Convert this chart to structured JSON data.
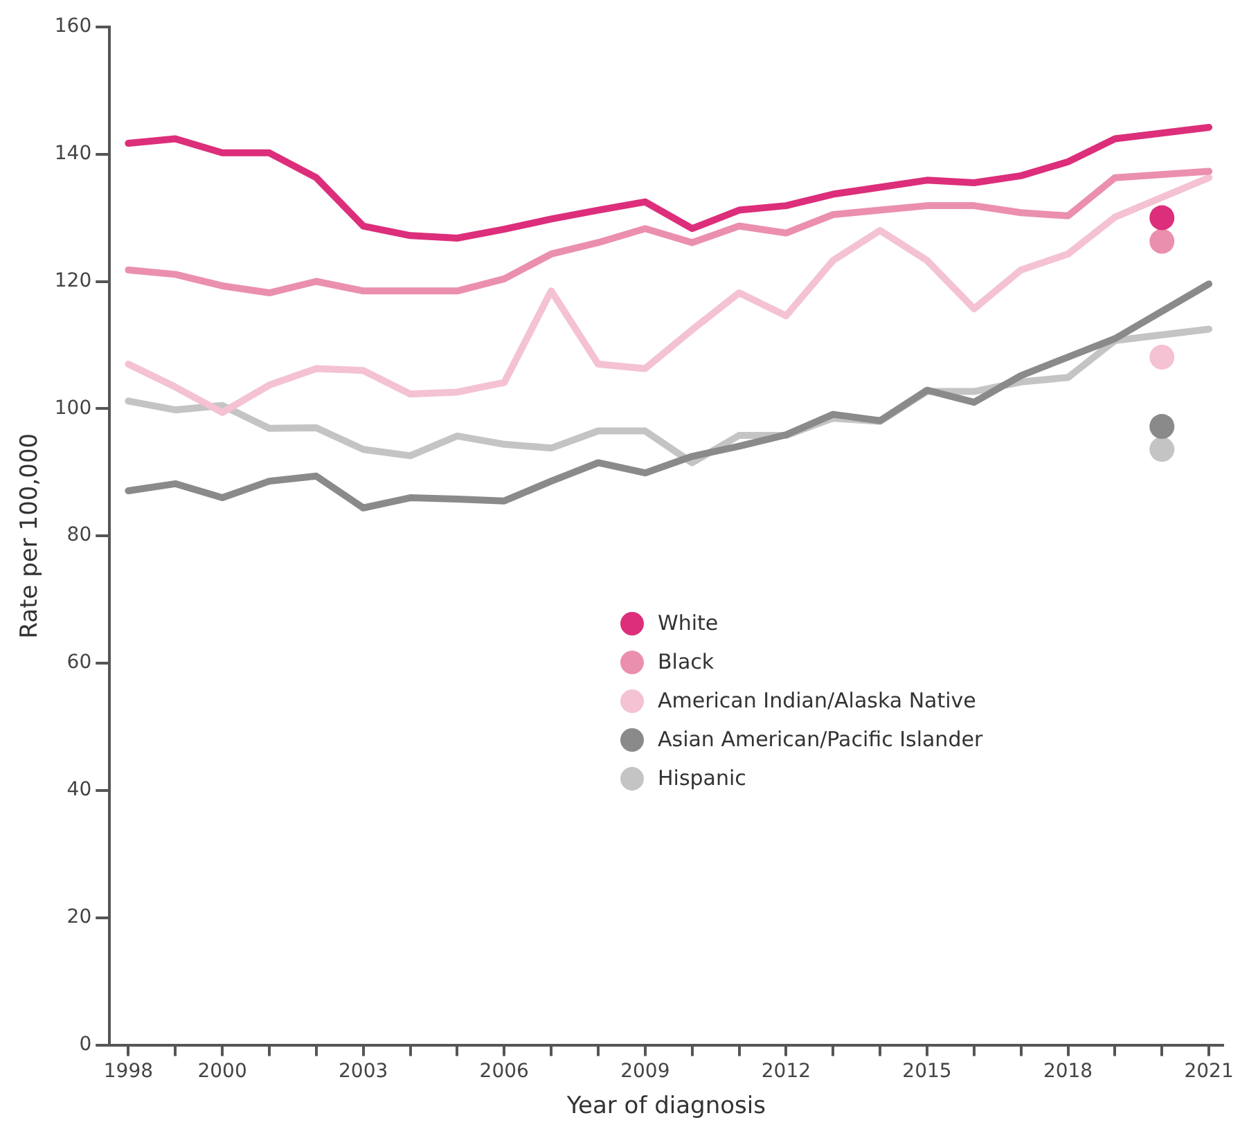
{
  "chart_data": {
    "type": "line",
    "xlabel": "Year of diagnosis",
    "ylabel": "Rate per 100,000",
    "xlim": [
      1997.6,
      2021.3
    ],
    "xticks": [
      1998,
      {
        "value": 1999,
        "label": null
      },
      2000,
      {
        "value": 2001,
        "label": null
      },
      {
        "value": 2002,
        "label": null
      },
      2003,
      {
        "value": 2004,
        "label": null
      },
      {
        "value": 2005,
        "label": null
      },
      2006,
      {
        "value": 2007,
        "label": null
      },
      {
        "value": 2008,
        "label": null
      },
      2009,
      {
        "value": 2010,
        "label": null
      },
      {
        "value": 2011,
        "label": null
      },
      2012,
      {
        "value": 2013,
        "label": null
      },
      {
        "value": 2014,
        "label": null
      },
      2015,
      {
        "value": 2016,
        "label": null
      },
      {
        "value": 2017,
        "label": null
      },
      2018,
      {
        "value": 2019,
        "label": null
      },
      {
        "value": 2020,
        "label": null
      },
      2021
    ],
    "ylim": [
      0,
      160
    ],
    "yticks": [
      0,
      20,
      40,
      60,
      80,
      100,
      120,
      140,
      160
    ],
    "grid": false,
    "legend": "center",
    "marker": "none",
    "line_style": "solid",
    "series": [
      {
        "name": "White",
        "color": "#dc2e7a",
        "x": [
          1998,
          1999,
          2000,
          2001,
          2002,
          2003,
          2004,
          2005,
          2006,
          2007,
          2008,
          2009,
          2010,
          2011,
          2012,
          2013,
          2014,
          2015,
          2016,
          2017,
          2018,
          2019,
          2021
        ],
        "values": [
          141.7,
          142.4,
          140.2,
          140.2,
          136.3,
          128.7,
          127.2,
          126.8,
          128.2,
          129.8,
          131.2,
          132.5,
          128.3,
          131.2,
          131.9,
          133.7,
          134.8,
          135.9,
          135.5,
          136.6,
          138.8,
          142.4,
          144.2
        ]
      },
      {
        "name": "Black",
        "color": "#eb8fae",
        "x": [
          1998,
          1999,
          2000,
          2001,
          2002,
          2003,
          2004,
          2005,
          2006,
          2007,
          2008,
          2009,
          2010,
          2011,
          2012,
          2013,
          2014,
          2015,
          2016,
          2017,
          2018,
          2019,
          2021
        ],
        "values": [
          121.8,
          121.1,
          119.3,
          118.2,
          120,
          118.5,
          118.5,
          118.5,
          120.4,
          124.3,
          126.1,
          128.3,
          126.1,
          128.7,
          127.6,
          130.5,
          131.2,
          131.9,
          131.9,
          130.8,
          130.3,
          136.3,
          137.3
        ]
      },
      {
        "name": "American Indian/Alaska Native",
        "color": "#f4c2d2",
        "x": [
          1998,
          1999,
          2000,
          2001,
          2002,
          2003,
          2004,
          2005,
          2006,
          2007,
          2008,
          2009,
          2010,
          2011,
          2012,
          2013,
          2014,
          2015,
          2016,
          2017,
          2018,
          2019,
          2021
        ],
        "values": [
          107,
          103.4,
          99.4,
          103.7,
          106.3,
          106,
          102.3,
          102.6,
          104.1,
          118.5,
          107,
          106.3,
          112.4,
          118.2,
          114.6,
          123.3,
          128,
          123.3,
          115.7,
          121.8,
          124.3,
          130.1,
          136.3
        ]
      },
      {
        "name": "Asian American/Pacific Islander",
        "color": "#8a8a8a",
        "x": [
          1998,
          1999,
          2000,
          2001,
          2002,
          2003,
          2004,
          2005,
          2006,
          2007,
          2008,
          2009,
          2010,
          2011,
          2012,
          2013,
          2014,
          2015,
          2016,
          2017,
          2018,
          2019,
          2021
        ],
        "values": [
          87.1,
          88.2,
          86,
          88.6,
          89.4,
          84.4,
          86,
          85.8,
          85.5,
          88.6,
          91.5,
          89.9,
          92.5,
          94.1,
          95.9,
          99.1,
          98.1,
          102.9,
          101,
          105.2,
          108.1,
          111,
          119.6
        ]
      },
      {
        "name": "Hispanic",
        "color": "#c4c4c4",
        "x": [
          1998,
          1999,
          2000,
          2001,
          2002,
          2003,
          2004,
          2005,
          2006,
          2007,
          2008,
          2009,
          2010,
          2011,
          2012,
          2013,
          2014,
          2015,
          2016,
          2017,
          2018,
          2019,
          2021
        ],
        "values": [
          101.2,
          99.8,
          100.5,
          96.9,
          97,
          93.6,
          92.6,
          95.7,
          94.4,
          93.8,
          96.5,
          96.5,
          91.5,
          95.8,
          95.8,
          98.5,
          98,
          102.7,
          102.7,
          104.2,
          104.9,
          110.7,
          112.5
        ]
      },
      {
        "type": "scatter",
        "marker": "circle",
        "color": "#dc2e7a",
        "x": [
          2020
        ],
        "values": [
          130
        ]
      },
      {
        "type": "scatter",
        "marker": "circle",
        "color": "#eb8fae",
        "x": [
          2020
        ],
        "values": [
          126.3
        ]
      },
      {
        "type": "scatter",
        "marker": "circle",
        "color": "#f4c2d2",
        "x": [
          2020
        ],
        "values": [
          108.1
        ]
      },
      {
        "type": "scatter",
        "marker": "circle",
        "color": "#8a8a8a",
        "x": [
          2020
        ],
        "values": [
          97.2
        ]
      },
      {
        "type": "scatter",
        "marker": "circle",
        "color": "#c4c4c4",
        "x": [
          2020
        ],
        "values": [
          93.6
        ]
      }
    ]
  }
}
